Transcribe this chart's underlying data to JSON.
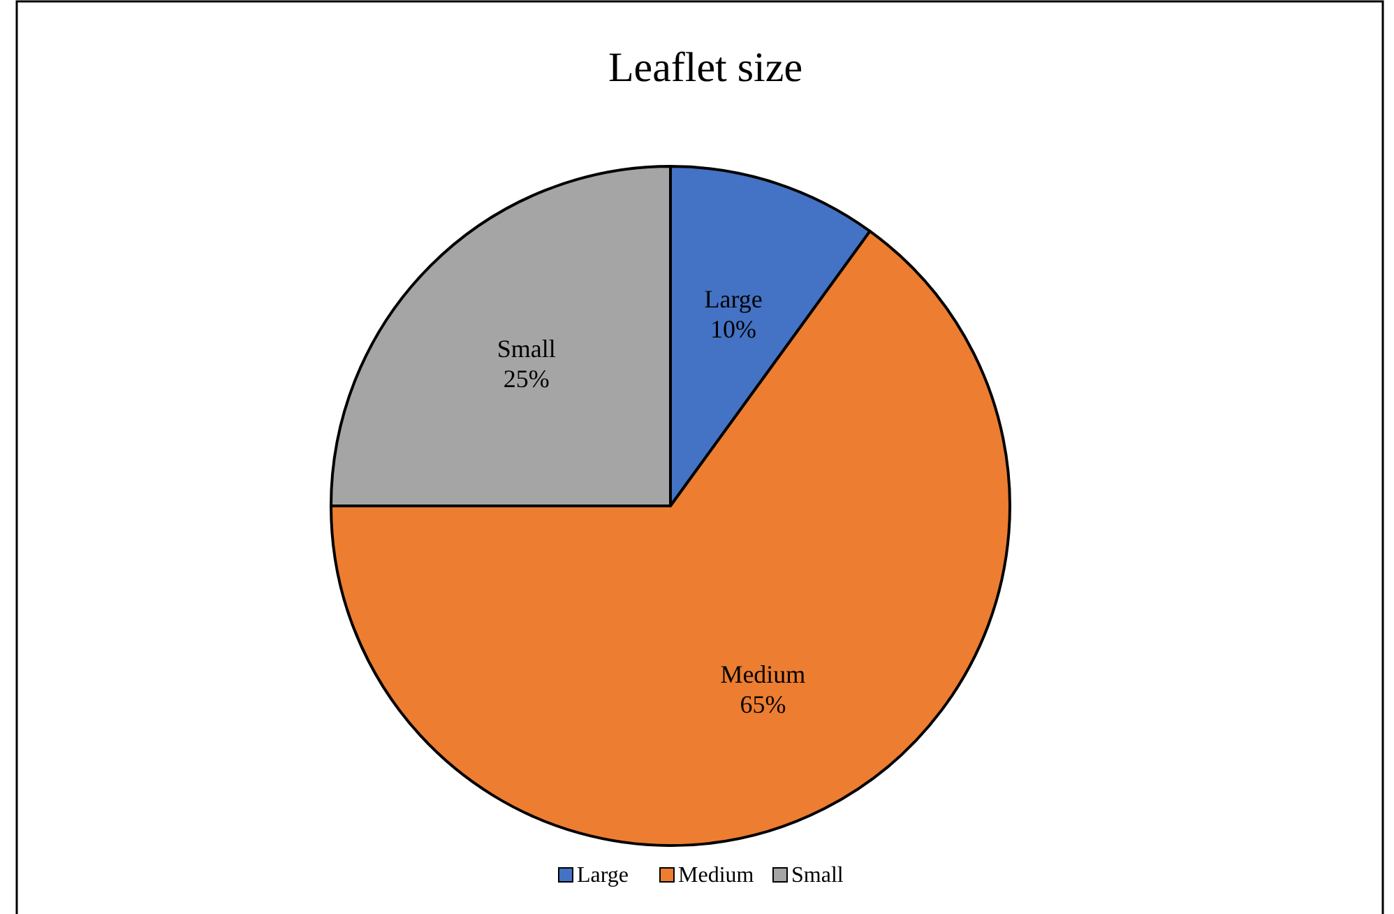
{
  "chart_data": {
    "type": "pie",
    "title": "Leaflet size",
    "categories": [
      "Large",
      "Medium",
      "Small"
    ],
    "values": [
      10,
      65,
      25
    ],
    "value_labels": [
      "10%",
      "65%",
      "25%"
    ],
    "colors": [
      "#4472c4",
      "#ed7d31",
      "#a5a5a5"
    ],
    "legend": "bottom"
  }
}
